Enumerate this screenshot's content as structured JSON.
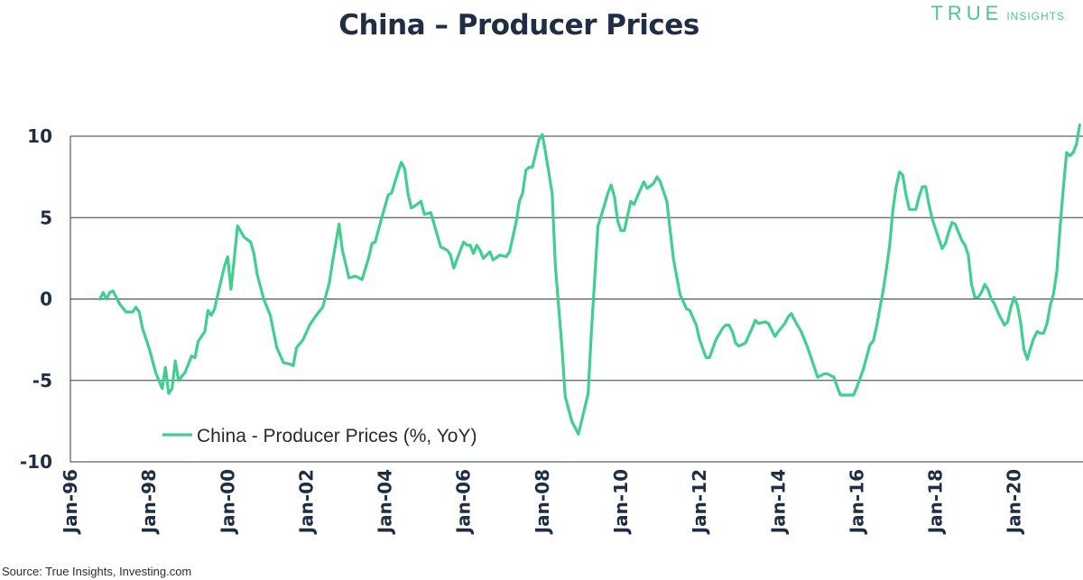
{
  "title": "China – Producer Prices",
  "logo": {
    "word1": "TRUE",
    "word2": "INSIGHTS"
  },
  "source": "Source: True Insights, Investing.com",
  "colors": {
    "line": "#3fcf8e",
    "axis_text": "#1f2d45",
    "grid": "#2b3a55"
  },
  "chart_data": {
    "type": "line",
    "title": "China – Producer Prices",
    "legend": "bottom-left inside plot",
    "grid": "horizontal",
    "yticks": [
      10,
      5,
      0,
      -5,
      -10
    ],
    "ylim": [
      -10,
      10
    ],
    "xlim": [
      "1996-01",
      "2021-10"
    ],
    "xticks": [
      "Jan-96",
      "Jan-98",
      "Jan-00",
      "Jan-02",
      "Jan-04",
      "Jan-06",
      "Jan-08",
      "Jan-10",
      "Jan-12",
      "Jan-14",
      "Jan-16",
      "Jan-18",
      "Jan-20"
    ],
    "series": [
      {
        "name": "China - Producer Prices (%, YoY)",
        "color": "#3fcf8e",
        "points": [
          [
            "1996-10",
            0.0
          ],
          [
            "1996-11",
            0.4
          ],
          [
            "1996-12",
            0.0
          ],
          [
            "1997-01",
            0.4
          ],
          [
            "1997-02",
            0.5
          ],
          [
            "1997-04",
            -0.3
          ],
          [
            "1997-06",
            -0.8
          ],
          [
            "1997-08",
            -0.8
          ],
          [
            "1997-09",
            -0.5
          ],
          [
            "1997-10",
            -0.8
          ],
          [
            "1997-11",
            -1.8
          ],
          [
            "1998-01",
            -3.0
          ],
          [
            "1998-03",
            -4.5
          ],
          [
            "1998-05",
            -5.5
          ],
          [
            "1998-06",
            -4.2
          ],
          [
            "1998-07",
            -5.8
          ],
          [
            "1998-08",
            -5.5
          ],
          [
            "1998-09",
            -3.8
          ],
          [
            "1998-10",
            -5.0
          ],
          [
            "1998-12",
            -4.5
          ],
          [
            "1999-02",
            -3.5
          ],
          [
            "1999-03",
            -3.6
          ],
          [
            "1999-04",
            -2.6
          ],
          [
            "1999-06",
            -2.0
          ],
          [
            "1999-07",
            -0.7
          ],
          [
            "1999-08",
            -1.0
          ],
          [
            "1999-09",
            -0.6
          ],
          [
            "1999-10",
            0.3
          ],
          [
            "1999-12",
            2.0
          ],
          [
            "2000-01",
            2.6
          ],
          [
            "2000-02",
            0.6
          ],
          [
            "2000-03",
            2.5
          ],
          [
            "2000-04",
            4.5
          ],
          [
            "2000-06",
            3.8
          ],
          [
            "2000-08",
            3.5
          ],
          [
            "2000-09",
            2.8
          ],
          [
            "2000-10",
            1.5
          ],
          [
            "2000-12",
            0.0
          ],
          [
            "2001-02",
            -1.0
          ],
          [
            "2001-03",
            -2.0
          ],
          [
            "2001-04",
            -3.0
          ],
          [
            "2001-06",
            -3.9
          ],
          [
            "2001-08",
            -4.0
          ],
          [
            "2001-09",
            -4.1
          ],
          [
            "2001-10",
            -3.0
          ],
          [
            "2001-12",
            -2.5
          ],
          [
            "2002-02",
            -1.6
          ],
          [
            "2002-04",
            -1.0
          ],
          [
            "2002-06",
            -0.5
          ],
          [
            "2002-08",
            1.0
          ],
          [
            "2002-09",
            2.3
          ],
          [
            "2002-11",
            4.6
          ],
          [
            "2002-12",
            3.0
          ],
          [
            "2003-02",
            1.3
          ],
          [
            "2003-04",
            1.4
          ],
          [
            "2003-06",
            1.2
          ],
          [
            "2003-08",
            2.5
          ],
          [
            "2003-09",
            3.4
          ],
          [
            "2003-10",
            3.5
          ],
          [
            "2003-12",
            5.0
          ],
          [
            "2004-02",
            6.4
          ],
          [
            "2004-03",
            6.5
          ],
          [
            "2004-05",
            7.8
          ],
          [
            "2004-06",
            8.4
          ],
          [
            "2004-07",
            8.0
          ],
          [
            "2004-08",
            6.5
          ],
          [
            "2004-09",
            5.6
          ],
          [
            "2004-10",
            5.7
          ],
          [
            "2004-12",
            6.0
          ],
          [
            "2005-01",
            5.2
          ],
          [
            "2005-03",
            5.3
          ],
          [
            "2005-04",
            4.6
          ],
          [
            "2005-06",
            3.2
          ],
          [
            "2005-08",
            3.0
          ],
          [
            "2005-09",
            2.7
          ],
          [
            "2005-10",
            1.9
          ],
          [
            "2005-12",
            3.0
          ],
          [
            "2006-01",
            3.5
          ],
          [
            "2006-02",
            3.3
          ],
          [
            "2006-03",
            3.3
          ],
          [
            "2006-04",
            2.8
          ],
          [
            "2006-05",
            3.3
          ],
          [
            "2006-06",
            3.0
          ],
          [
            "2006-07",
            2.5
          ],
          [
            "2006-09",
            2.9
          ],
          [
            "2006-10",
            2.4
          ],
          [
            "2006-12",
            2.7
          ],
          [
            "2007-02",
            2.6
          ],
          [
            "2007-03",
            2.9
          ],
          [
            "2007-05",
            4.7
          ],
          [
            "2007-06",
            6.0
          ],
          [
            "2007-07",
            6.5
          ],
          [
            "2007-08",
            7.9
          ],
          [
            "2007-09",
            8.1
          ],
          [
            "2007-10",
            8.1
          ],
          [
            "2007-12",
            9.8
          ],
          [
            "2008-01",
            10.1
          ],
          [
            "2008-02",
            9.0
          ],
          [
            "2008-04",
            6.5
          ],
          [
            "2008-05",
            2.0
          ],
          [
            "2008-07",
            -3.0
          ],
          [
            "2008-08",
            -6.0
          ],
          [
            "2008-10",
            -7.5
          ],
          [
            "2008-12",
            -8.3
          ],
          [
            "2009-01",
            -7.5
          ],
          [
            "2009-03",
            -5.8
          ],
          [
            "2009-04",
            -2.0
          ],
          [
            "2009-06",
            4.5
          ],
          [
            "2009-08",
            5.8
          ],
          [
            "2009-09",
            6.5
          ],
          [
            "2009-10",
            7.0
          ],
          [
            "2009-11",
            6.3
          ],
          [
            "2009-12",
            4.8
          ],
          [
            "2010-01",
            4.2
          ],
          [
            "2010-02",
            4.2
          ],
          [
            "2010-04",
            6.0
          ],
          [
            "2010-05",
            5.8
          ],
          [
            "2010-06",
            6.3
          ],
          [
            "2010-08",
            7.2
          ],
          [
            "2010-09",
            6.8
          ],
          [
            "2010-11",
            7.1
          ],
          [
            "2010-12",
            7.5
          ],
          [
            "2011-01",
            7.2
          ],
          [
            "2011-03",
            6.0
          ],
          [
            "2011-05",
            2.5
          ],
          [
            "2011-07",
            0.3
          ],
          [
            "2011-09",
            -0.6
          ],
          [
            "2011-10",
            -0.7
          ],
          [
            "2011-12",
            -1.6
          ],
          [
            "2012-01",
            -2.5
          ],
          [
            "2012-03",
            -3.6
          ],
          [
            "2012-04",
            -3.6
          ],
          [
            "2012-06",
            -2.5
          ],
          [
            "2012-08",
            -1.8
          ],
          [
            "2012-09",
            -1.6
          ],
          [
            "2012-10",
            -1.6
          ],
          [
            "2012-11",
            -2.0
          ],
          [
            "2012-12",
            -2.7
          ],
          [
            "2013-01",
            -2.9
          ],
          [
            "2013-03",
            -2.7
          ],
          [
            "2013-05",
            -1.8
          ],
          [
            "2013-06",
            -1.3
          ],
          [
            "2013-07",
            -1.5
          ],
          [
            "2013-09",
            -1.4
          ],
          [
            "2013-10",
            -1.5
          ],
          [
            "2013-12",
            -2.3
          ],
          [
            "2014-01",
            -2.0
          ],
          [
            "2014-03",
            -1.5
          ],
          [
            "2014-04",
            -1.1
          ],
          [
            "2014-05",
            -0.9
          ],
          [
            "2014-06",
            -1.3
          ],
          [
            "2014-08",
            -2.0
          ],
          [
            "2014-09",
            -2.5
          ],
          [
            "2014-10",
            -3.0
          ],
          [
            "2014-12",
            -4.2
          ],
          [
            "2015-01",
            -4.8
          ],
          [
            "2015-03",
            -4.6
          ],
          [
            "2015-04",
            -4.6
          ],
          [
            "2015-06",
            -4.8
          ],
          [
            "2015-07",
            -5.4
          ],
          [
            "2015-08",
            -5.9
          ],
          [
            "2015-10",
            -5.9
          ],
          [
            "2015-12",
            -5.9
          ],
          [
            "2016-01",
            -5.4
          ],
          [
            "2016-03",
            -4.3
          ],
          [
            "2016-05",
            -2.8
          ],
          [
            "2016-06",
            -2.6
          ],
          [
            "2016-07",
            -1.7
          ],
          [
            "2016-09",
            0.5
          ],
          [
            "2016-10",
            1.8
          ],
          [
            "2016-11",
            3.3
          ],
          [
            "2016-12",
            5.5
          ],
          [
            "2017-01",
            6.9
          ],
          [
            "2017-02",
            7.8
          ],
          [
            "2017-03",
            7.6
          ],
          [
            "2017-04",
            6.4
          ],
          [
            "2017-05",
            5.5
          ],
          [
            "2017-06",
            5.5
          ],
          [
            "2017-07",
            5.5
          ],
          [
            "2017-08",
            6.3
          ],
          [
            "2017-09",
            6.9
          ],
          [
            "2017-10",
            6.9
          ],
          [
            "2017-11",
            5.8
          ],
          [
            "2017-12",
            4.9
          ],
          [
            "2018-01",
            4.3
          ],
          [
            "2018-02",
            3.7
          ],
          [
            "2018-03",
            3.1
          ],
          [
            "2018-04",
            3.4
          ],
          [
            "2018-05",
            4.1
          ],
          [
            "2018-06",
            4.7
          ],
          [
            "2018-07",
            4.6
          ],
          [
            "2018-08",
            4.1
          ],
          [
            "2018-09",
            3.6
          ],
          [
            "2018-10",
            3.3
          ],
          [
            "2018-11",
            2.7
          ],
          [
            "2018-12",
            0.9
          ],
          [
            "2019-01",
            0.1
          ],
          [
            "2019-02",
            0.1
          ],
          [
            "2019-03",
            0.4
          ],
          [
            "2019-04",
            0.9
          ],
          [
            "2019-05",
            0.6
          ],
          [
            "2019-06",
            0.0
          ],
          [
            "2019-07",
            -0.3
          ],
          [
            "2019-08",
            -0.8
          ],
          [
            "2019-09",
            -1.2
          ],
          [
            "2019-10",
            -1.6
          ],
          [
            "2019-11",
            -1.4
          ],
          [
            "2019-12",
            -0.5
          ],
          [
            "2020-01",
            0.1
          ],
          [
            "2020-02",
            -0.4
          ],
          [
            "2020-03",
            -1.5
          ],
          [
            "2020-04",
            -3.1
          ],
          [
            "2020-05",
            -3.7
          ],
          [
            "2020-06",
            -3.0
          ],
          [
            "2020-07",
            -2.4
          ],
          [
            "2020-08",
            -2.0
          ],
          [
            "2020-09",
            -2.1
          ],
          [
            "2020-10",
            -2.1
          ],
          [
            "2020-11",
            -1.5
          ],
          [
            "2020-12",
            -0.4
          ],
          [
            "2021-01",
            0.3
          ],
          [
            "2021-02",
            1.7
          ],
          [
            "2021-03",
            4.4
          ],
          [
            "2021-04",
            6.8
          ],
          [
            "2021-05",
            9.0
          ],
          [
            "2021-06",
            8.8
          ],
          [
            "2021-07",
            9.0
          ],
          [
            "2021-08",
            9.5
          ],
          [
            "2021-09",
            10.7
          ]
        ]
      }
    ]
  }
}
